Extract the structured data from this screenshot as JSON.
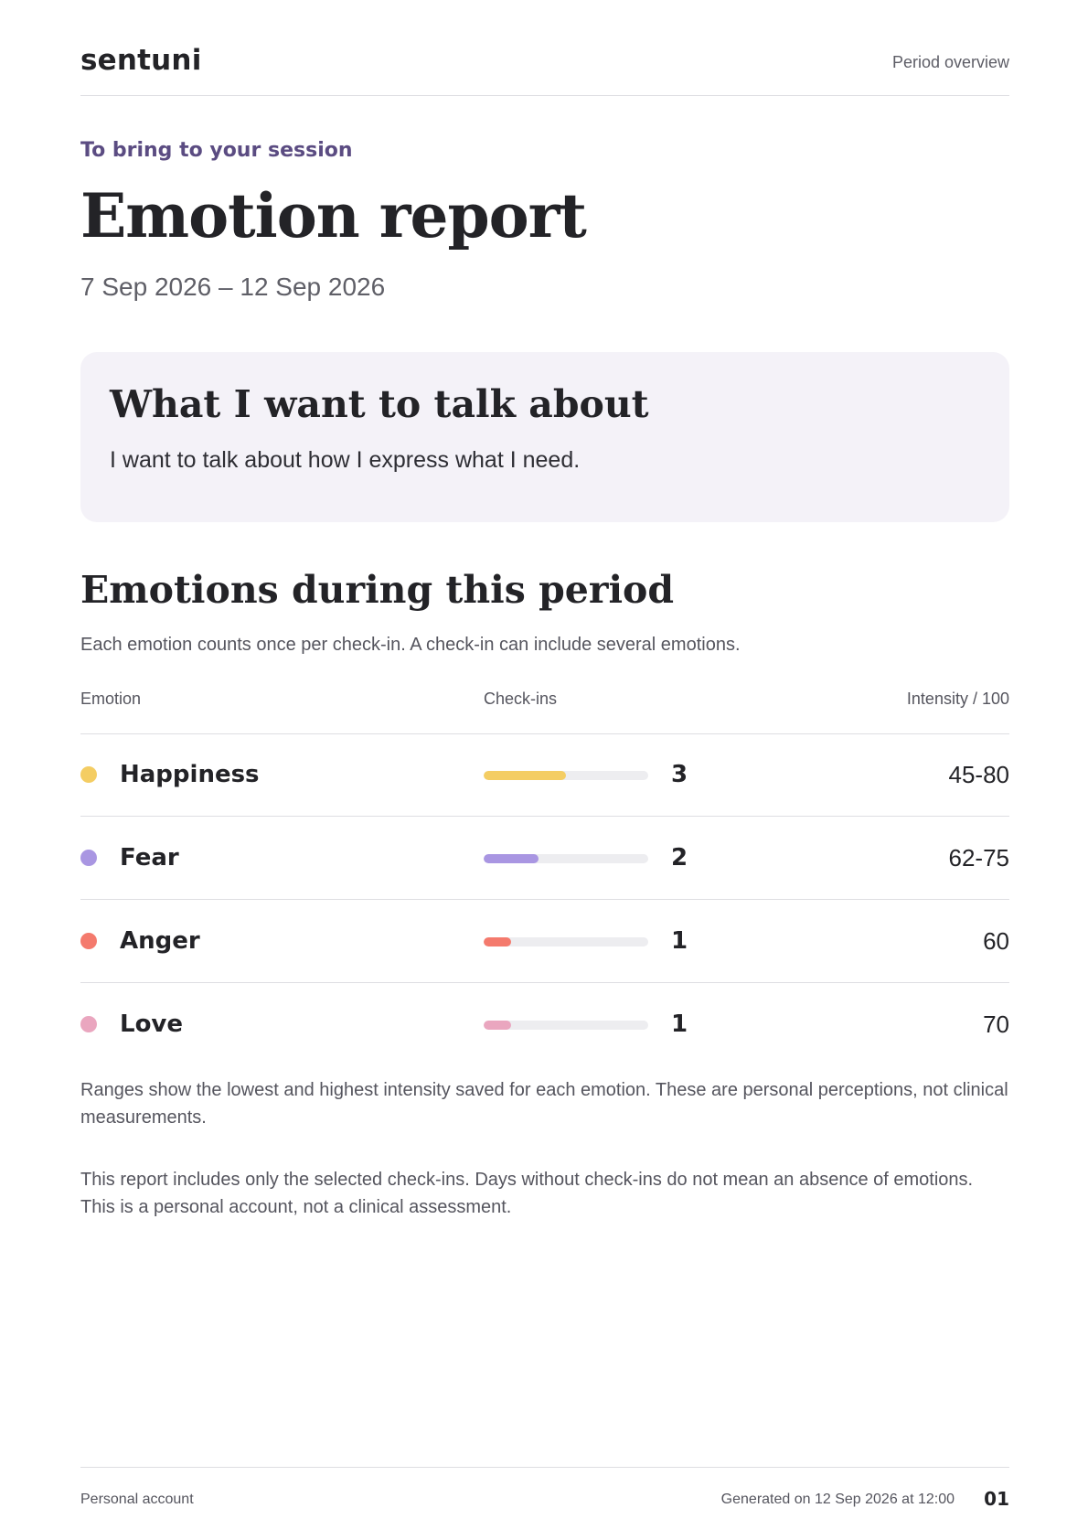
{
  "header": {
    "brand": "sentuni",
    "section": "Period overview"
  },
  "report": {
    "eyebrow": "To bring to your session",
    "title": "Emotion report",
    "date_range": "7 Sep 2026 – 12 Sep 2026"
  },
  "talk": {
    "heading": "What I want to talk about",
    "body": "I want to talk about how I express what I need."
  },
  "emotions": {
    "title": "Emotions during this period",
    "note": "Each emotion counts once per check-in. A check-in can include several emotions.",
    "columns": {
      "emotion": "Emotion",
      "checkins": "Check-ins",
      "intensity": "Intensity / 100"
    },
    "max_checkins": 6,
    "rows": [
      {
        "name": "Happiness",
        "checkins": 3,
        "intensity": "45-80",
        "color": "#f4cd63"
      },
      {
        "name": "Fear",
        "checkins": 2,
        "intensity": "62-75",
        "color": "#a996e2"
      },
      {
        "name": "Anger",
        "checkins": 1,
        "intensity": "60",
        "color": "#f47a6d"
      },
      {
        "name": "Love",
        "checkins": 1,
        "intensity": "70",
        "color": "#eaa6bf"
      }
    ]
  },
  "footnotes": {
    "ranges": "Ranges show the lowest and highest intensity saved for each emotion. These are personal perceptions, not clinical measurements.",
    "disclaimer": "This report includes only the selected check-ins. Days without check-ins do not mean an absence of emotions. This is a personal account, not a clinical assessment."
  },
  "footer": {
    "left": "Personal account",
    "generated": "Generated on 12 Sep 2026 at 12:00",
    "page": "01"
  }
}
